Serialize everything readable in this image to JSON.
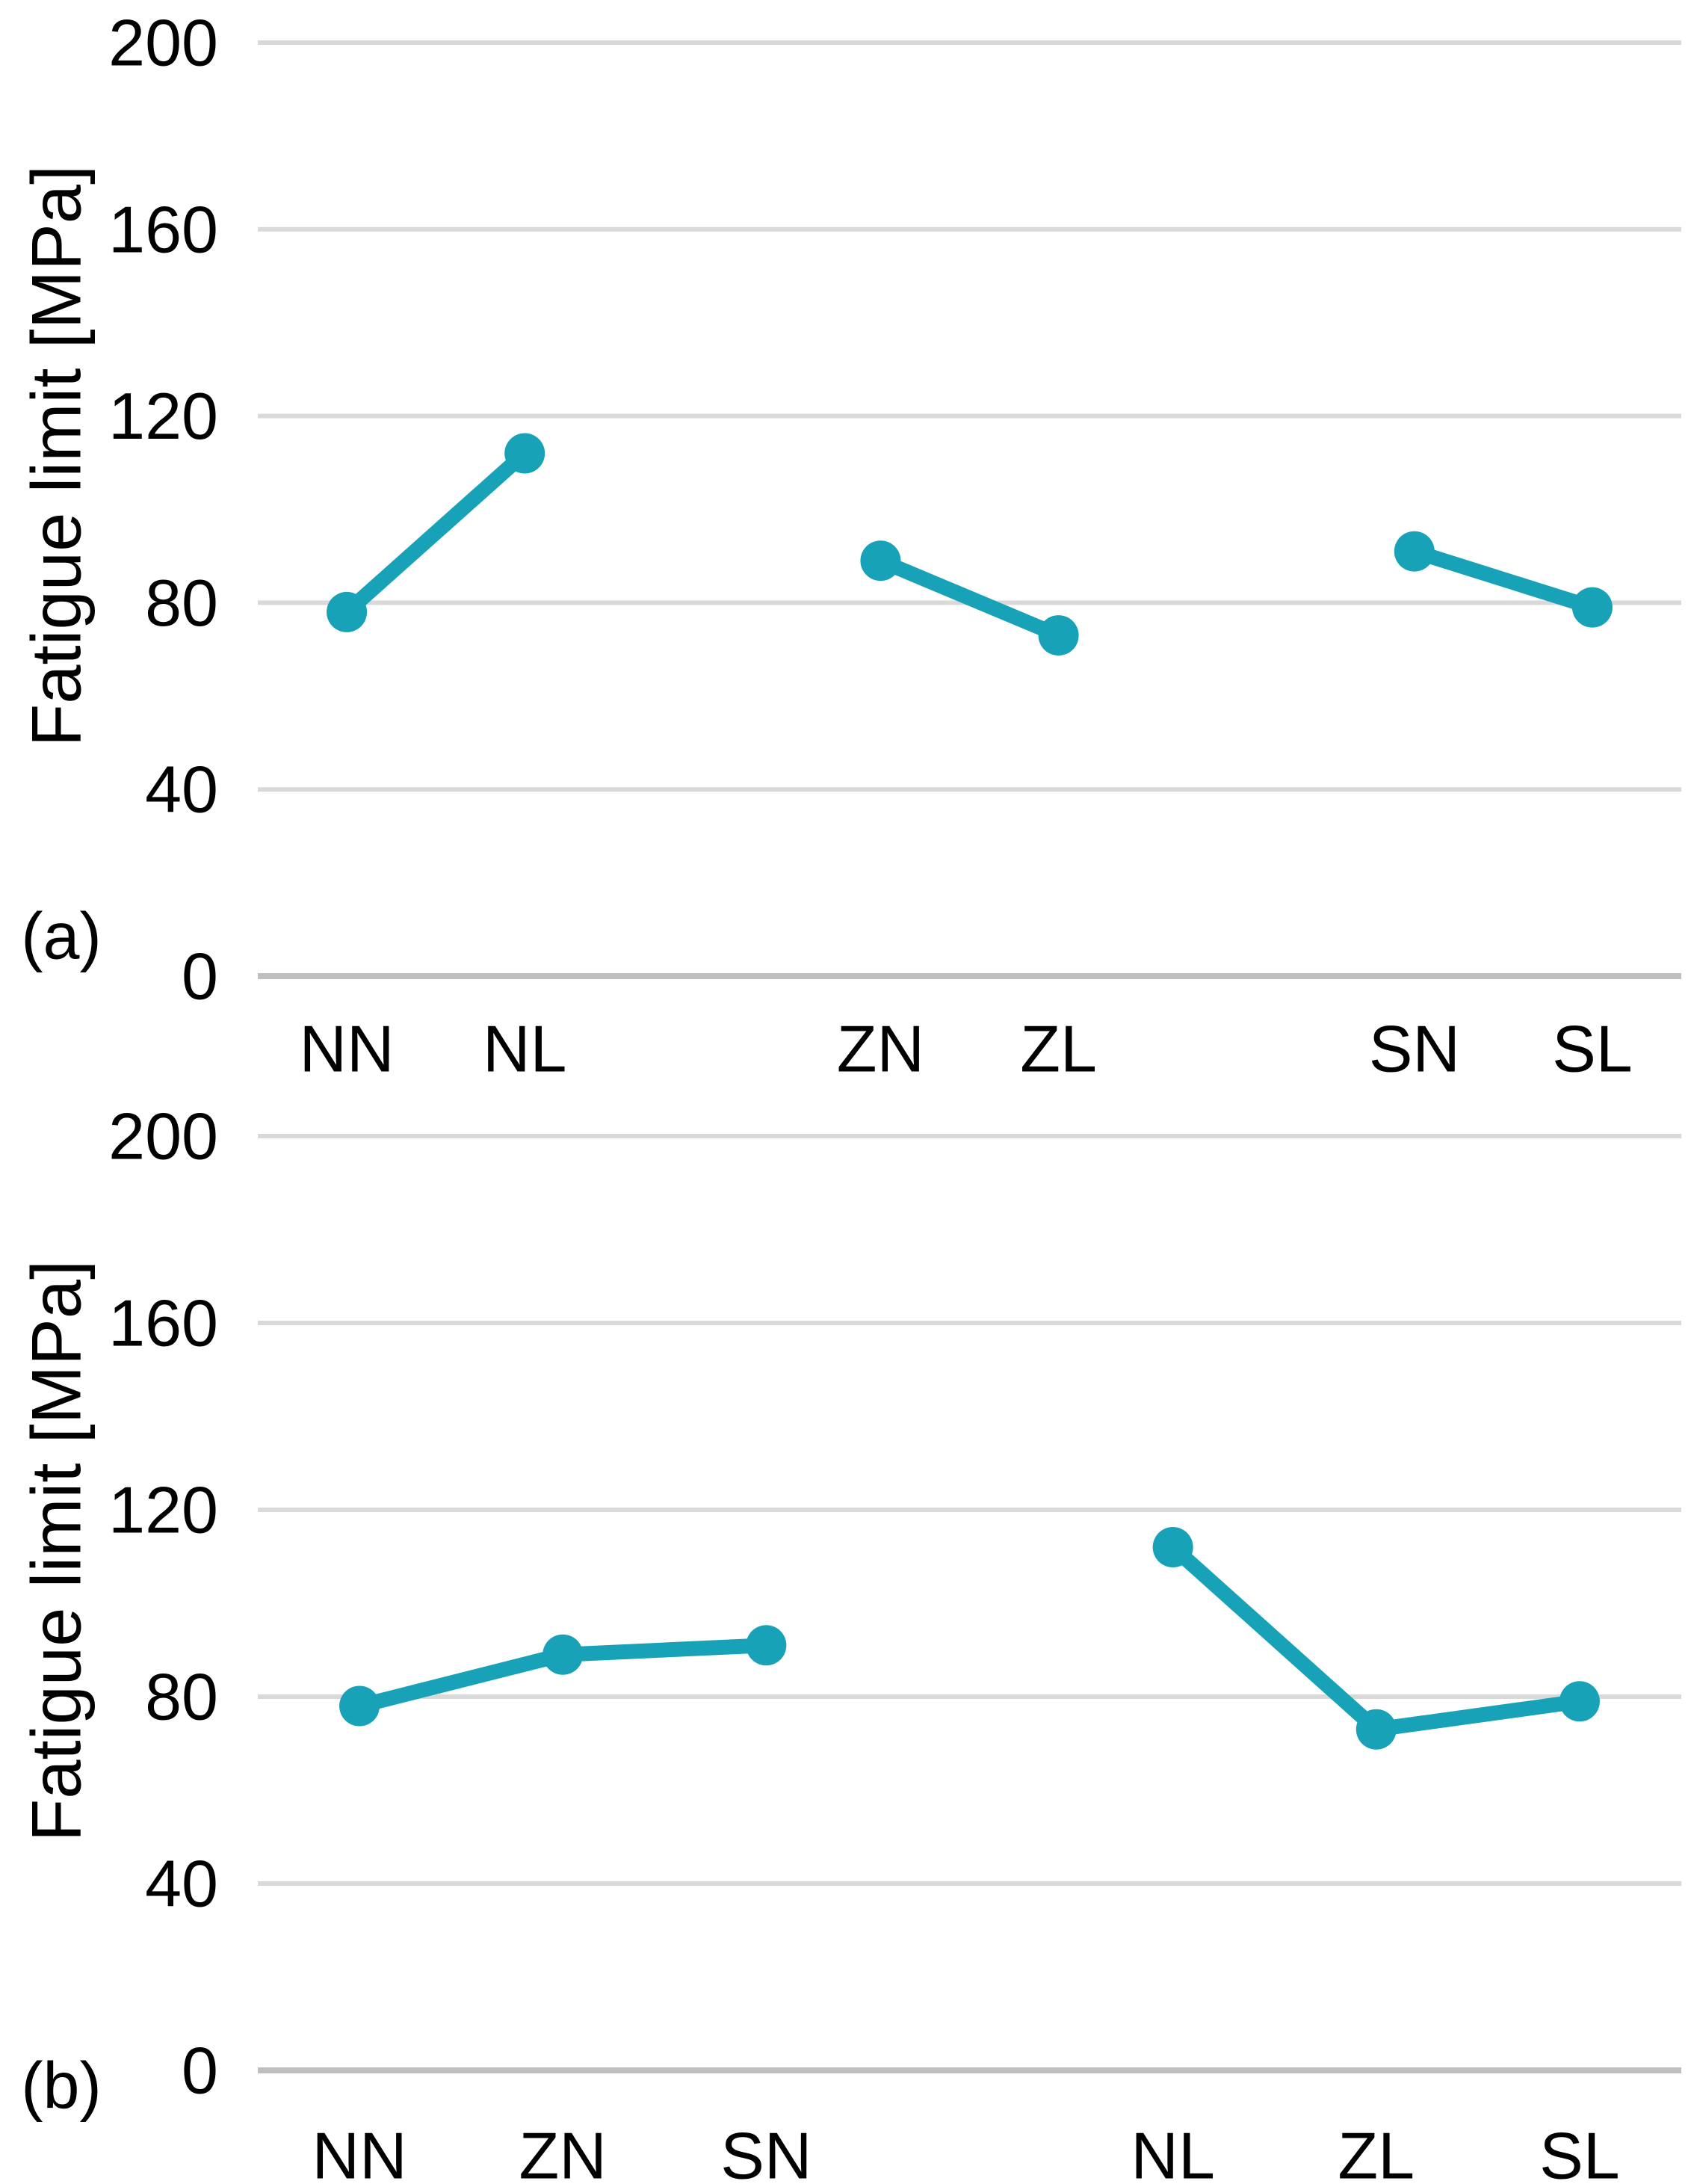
{
  "figure": {
    "background_color": "#FFFFFF",
    "accent_color": "#17A2B8",
    "gridline_color": "#D9D9D9",
    "axisline_color": "#BFBFBF",
    "text_color": "#000000"
  },
  "chart_data": [
    {
      "type": "line",
      "panel_label": "(a)",
      "ylabel": "Fatigue limit [MPa]",
      "xlabel": "",
      "ylim": [
        0,
        200
      ],
      "yticks": [
        0,
        40,
        80,
        120,
        160,
        200
      ],
      "grid": true,
      "legend_position": "none",
      "x_slots": 8,
      "series": [
        {
          "points": [
            {
              "category": "NN",
              "slot": 1,
              "value": 78
            },
            {
              "category": "NL",
              "slot": 2,
              "value": 112
            }
          ]
        },
        {
          "points": [
            {
              "category": "ZN",
              "slot": 4,
              "value": 89
            },
            {
              "category": "ZL",
              "slot": 5,
              "value": 73
            }
          ]
        },
        {
          "points": [
            {
              "category": "SN",
              "slot": 7,
              "value": 91
            },
            {
              "category": "SL",
              "slot": 8,
              "value": 79
            }
          ]
        }
      ]
    },
    {
      "type": "line",
      "panel_label": "(b)",
      "ylabel": "Fatigue limit [MPa]",
      "xlabel": "",
      "ylim": [
        0,
        200
      ],
      "yticks": [
        0,
        40,
        80,
        120,
        160,
        200
      ],
      "grid": true,
      "legend_position": "none",
      "x_slots": 7,
      "series": [
        {
          "points": [
            {
              "category": "NN",
              "slot": 1,
              "value": 78
            },
            {
              "category": "ZN",
              "slot": 2,
              "value": 89
            },
            {
              "category": "SN",
              "slot": 3,
              "value": 91
            }
          ]
        },
        {
          "points": [
            {
              "category": "NL",
              "slot": 5,
              "value": 112
            },
            {
              "category": "ZL",
              "slot": 6,
              "value": 73
            },
            {
              "category": "SL",
              "slot": 7,
              "value": 79
            }
          ]
        }
      ]
    }
  ]
}
